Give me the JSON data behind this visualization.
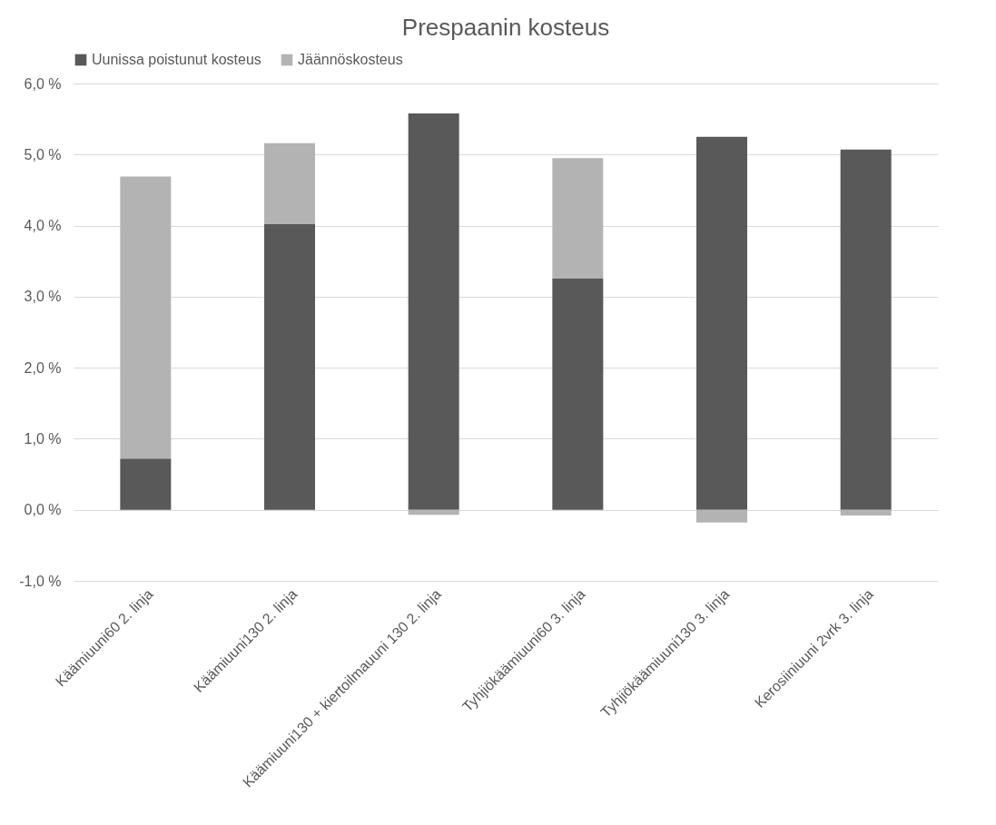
{
  "chart_data": {
    "type": "bar",
    "title": "Prespaanin kosteus",
    "stacked": true,
    "categories": [
      "Käämiuuni60 2. linja",
      "Käämiuuni130 2. linja",
      "Käämiuuni130 + kiertoilmauuni 130 2. linja",
      "Tyhjiökäämiuuni60 3. linja",
      "Tyhjiökäämiuuni130 3. linja",
      "Kerosiiniuuni 2vrk 3. linja"
    ],
    "series": [
      {
        "name": "Uunissa poistunut kosteus",
        "color": "#595959",
        "values": [
          0.72,
          4.02,
          5.58,
          3.26,
          5.25,
          5.07
        ]
      },
      {
        "name": "Jäännöskosteus",
        "color": "#b3b3b3",
        "values": [
          3.97,
          1.14,
          -0.07,
          1.69,
          -0.18,
          -0.08
        ]
      }
    ],
    "ylim": [
      -1,
      6
    ],
    "yticks": [
      {
        "value": -1,
        "label": "-1,0 %"
      },
      {
        "value": 0,
        "label": "0,0 %"
      },
      {
        "value": 1,
        "label": "1,0 %"
      },
      {
        "value": 2,
        "label": "2,0 %"
      },
      {
        "value": 3,
        "label": "3,0 %"
      },
      {
        "value": 4,
        "label": "4,0 %"
      },
      {
        "value": 5,
        "label": "5,0 %"
      },
      {
        "value": 6,
        "label": "6,0 %"
      }
    ],
    "grid": "y",
    "legend": "top"
  }
}
